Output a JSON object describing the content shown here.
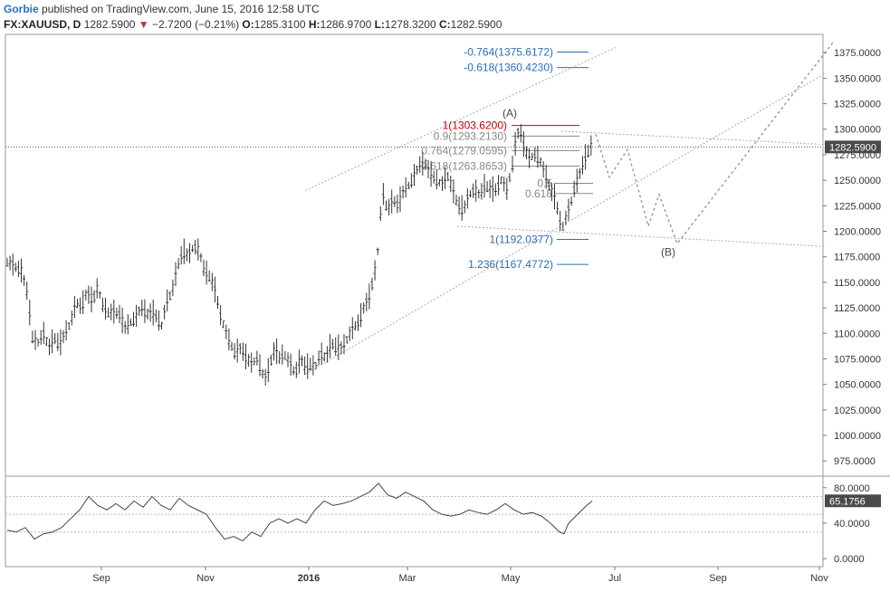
{
  "header": {
    "author": "Gorbie",
    "published": "published on TradingView.com, June 15, 2016 12:58 UTC",
    "symbol": "FX:XAUUSD, D",
    "last": "1282.5900",
    "change_arrow": "▼",
    "change": "−2.7200 (−0.21%)",
    "o_label": "O:",
    "o_value": "1285.3100",
    "h_label": "H:",
    "h_value": "1286.9700",
    "l_label": "L:",
    "l_value": "1278.3200",
    "c_label": "C:",
    "c_value": "1282.5900"
  },
  "chart_data": [
    {
      "type": "ohlc",
      "symbol": "FX:XAUUSD",
      "interval": "D",
      "ylim": [
        961,
        1392
      ],
      "price_ticks": [
        "975.0000",
        "1000.0000",
        "1025.0000",
        "1050.0000",
        "1075.0000",
        "1100.0000",
        "1125.0000",
        "1150.0000",
        "1175.0000",
        "1200.0000",
        "1225.0000",
        "1250.0000",
        "1275.0000",
        "1300.0000",
        "1325.0000",
        "1350.0000",
        "1375.0000"
      ],
      "last_price_label": "1282.5900",
      "x_tick_labels": [
        {
          "label": "Sep",
          "bold": false
        },
        {
          "label": "Nov",
          "bold": false
        },
        {
          "label": "2016",
          "bold": true
        },
        {
          "label": "Mar",
          "bold": false
        },
        {
          "label": "May",
          "bold": false
        },
        {
          "label": "Jul",
          "bold": false
        },
        {
          "label": "Sep",
          "bold": false
        },
        {
          "label": "Nov",
          "bold": false
        }
      ],
      "price_path": [
        [
          0,
          1170
        ],
        [
          8,
          1165
        ],
        [
          16,
          1160
        ],
        [
          22,
          1140
        ],
        [
          28,
          1095
        ],
        [
          34,
          1090
        ],
        [
          40,
          1100
        ],
        [
          46,
          1085
        ],
        [
          52,
          1095
        ],
        [
          58,
          1088
        ],
        [
          64,
          1100
        ],
        [
          70,
          1110
        ],
        [
          76,
          1130
        ],
        [
          82,
          1125
        ],
        [
          88,
          1140
        ],
        [
          94,
          1130
        ],
        [
          100,
          1145
        ],
        [
          106,
          1125
        ],
        [
          112,
          1120
        ],
        [
          118,
          1120
        ],
        [
          124,
          1118
        ],
        [
          130,
          1105
        ],
        [
          136,
          1110
        ],
        [
          142,
          1115
        ],
        [
          148,
          1125
        ],
        [
          154,
          1118
        ],
        [
          160,
          1120
        ],
        [
          166,
          1115
        ],
        [
          170,
          1105
        ],
        [
          176,
          1130
        ],
        [
          182,
          1140
        ],
        [
          188,
          1165
        ],
        [
          194,
          1180
        ],
        [
          200,
          1175
        ],
        [
          206,
          1185
        ],
        [
          212,
          1180
        ],
        [
          218,
          1160
        ],
        [
          224,
          1155
        ],
        [
          230,
          1140
        ],
        [
          236,
          1115
        ],
        [
          240,
          1105
        ],
        [
          246,
          1090
        ],
        [
          252,
          1080
        ],
        [
          258,
          1085
        ],
        [
          264,
          1075
        ],
        [
          270,
          1070
        ],
        [
          276,
          1075
        ],
        [
          282,
          1060
        ],
        [
          286,
          1055
        ],
        [
          292,
          1075
        ],
        [
          296,
          1085
        ],
        [
          300,
          1075
        ],
        [
          306,
          1080
        ],
        [
          312,
          1070
        ],
        [
          318,
          1060
        ],
        [
          324,
          1075
        ],
        [
          330,
          1065
        ],
        [
          336,
          1070
        ],
        [
          340,
          1065
        ],
        [
          346,
          1080
        ],
        [
          352,
          1075
        ],
        [
          358,
          1090
        ],
        [
          364,
          1085
        ],
        [
          370,
          1085
        ],
        [
          376,
          1095
        ],
        [
          382,
          1105
        ],
        [
          388,
          1110
        ],
        [
          394,
          1125
        ],
        [
          400,
          1135
        ],
        [
          406,
          1160
        ],
        [
          410,
          1185
        ],
        [
          414,
          1240
        ],
        [
          420,
          1220
        ],
        [
          426,
          1230
        ],
        [
          432,
          1225
        ],
        [
          438,
          1240
        ],
        [
          444,
          1245
        ],
        [
          450,
          1255
        ],
        [
          456,
          1265
        ],
        [
          462,
          1265
        ],
        [
          468,
          1255
        ],
        [
          474,
          1250
        ],
        [
          480,
          1245
        ],
        [
          486,
          1255
        ],
        [
          492,
          1240
        ],
        [
          498,
          1225
        ],
        [
          504,
          1220
        ],
        [
          510,
          1235
        ],
        [
          516,
          1240
        ],
        [
          522,
          1235
        ],
        [
          528,
          1245
        ],
        [
          534,
          1240
        ],
        [
          540,
          1240
        ],
        [
          546,
          1250
        ],
        [
          552,
          1240
        ],
        [
          558,
          1265
        ],
        [
          562,
          1290
        ],
        [
          566,
          1300
        ],
        [
          570,
          1285
        ],
        [
          576,
          1270
        ],
        [
          582,
          1275
        ],
        [
          588,
          1270
        ],
        [
          594,
          1255
        ],
        [
          600,
          1240
        ],
        [
          606,
          1230
        ],
        [
          610,
          1210
        ],
        [
          614,
          1205
        ],
        [
          618,
          1215
        ],
        [
          622,
          1225
        ],
        [
          626,
          1240
        ],
        [
          630,
          1250
        ],
        [
          636,
          1265
        ],
        [
          640,
          1275
        ],
        [
          646,
          1285
        ]
      ],
      "fib_levels": [
        {
          "label": "-0.764(1375.6172)",
          "price": 1375.6172,
          "color": "#2a6ebb"
        },
        {
          "label": "-0.618(1360.4230)",
          "price": 1360.423,
          "color": "#2a6ebb"
        },
        {
          "label": "1(1303.6200)",
          "price": 1303.62,
          "color": "#cc0000"
        },
        {
          "label": "0.9(1293.2130)",
          "price": 1293.213,
          "color": "#888888"
        },
        {
          "label": "0.764(1279.0595)",
          "price": 1279.0595,
          "color": "#888888"
        },
        {
          "label": "0.618(1263.8653)",
          "price": 1263.8653,
          "color": "#888888"
        },
        {
          "label": "1(1192.0377)",
          "price": 1192.0377,
          "color": "#2a6ebb"
        },
        {
          "label": "1.236(1167.4772)",
          "price": 1167.4772,
          "color": "#2a6ebb"
        }
      ],
      "retrace_levels": [
        {
          "label": "0.5",
          "price": 1247
        },
        {
          "label": "0.618",
          "price": 1237
        }
      ],
      "wave_labels": [
        {
          "label": "(A)",
          "price": 1312
        },
        {
          "label": "(B)",
          "price": 1176
        }
      ],
      "projection_path": [
        [
          650,
          1295
        ],
        [
          665,
          1253
        ],
        [
          685,
          1280
        ],
        [
          708,
          1205
        ],
        [
          720,
          1236
        ],
        [
          740,
          1188
        ],
        [
          912,
          1385
        ]
      ]
    },
    {
      "type": "line",
      "indicator": "RSI",
      "ylim": [
        -8,
        92
      ],
      "ticks": [
        "0.0000",
        "40.0000",
        "80.0000"
      ],
      "last_value_label": "65.1756",
      "bands": [
        70,
        50,
        30
      ],
      "values": [
        [
          0,
          32
        ],
        [
          10,
          30
        ],
        [
          20,
          35
        ],
        [
          30,
          22
        ],
        [
          40,
          28
        ],
        [
          50,
          30
        ],
        [
          60,
          35
        ],
        [
          70,
          45
        ],
        [
          80,
          55
        ],
        [
          90,
          70
        ],
        [
          100,
          60
        ],
        [
          110,
          55
        ],
        [
          120,
          62
        ],
        [
          130,
          55
        ],
        [
          140,
          65
        ],
        [
          150,
          58
        ],
        [
          160,
          70
        ],
        [
          170,
          60
        ],
        [
          180,
          55
        ],
        [
          190,
          68
        ],
        [
          200,
          60
        ],
        [
          210,
          55
        ],
        [
          220,
          50
        ],
        [
          230,
          35
        ],
        [
          240,
          22
        ],
        [
          250,
          25
        ],
        [
          260,
          20
        ],
        [
          270,
          30
        ],
        [
          280,
          25
        ],
        [
          290,
          40
        ],
        [
          300,
          45
        ],
        [
          310,
          40
        ],
        [
          320,
          45
        ],
        [
          330,
          40
        ],
        [
          340,
          55
        ],
        [
          350,
          65
        ],
        [
          360,
          60
        ],
        [
          370,
          62
        ],
        [
          380,
          65
        ],
        [
          390,
          70
        ],
        [
          400,
          75
        ],
        [
          410,
          85
        ],
        [
          420,
          72
        ],
        [
          430,
          68
        ],
        [
          440,
          75
        ],
        [
          450,
          70
        ],
        [
          460,
          65
        ],
        [
          470,
          55
        ],
        [
          480,
          50
        ],
        [
          490,
          48
        ],
        [
          500,
          50
        ],
        [
          510,
          55
        ],
        [
          520,
          52
        ],
        [
          530,
          50
        ],
        [
          540,
          55
        ],
        [
          550,
          62
        ],
        [
          560,
          55
        ],
        [
          570,
          50
        ],
        [
          580,
          52
        ],
        [
          590,
          48
        ],
        [
          600,
          40
        ],
        [
          610,
          30
        ],
        [
          615,
          28
        ],
        [
          620,
          40
        ],
        [
          630,
          50
        ],
        [
          640,
          60
        ],
        [
          646,
          65
        ]
      ]
    }
  ]
}
